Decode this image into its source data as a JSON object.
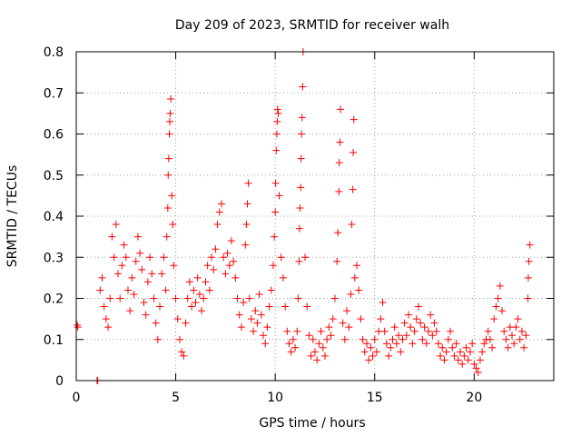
{
  "chart_data": {
    "type": "scatter",
    "title": "Day 209 of 2023, SRMTID for receiver walh",
    "xlabel": "GPS time / hours",
    "ylabel": "SRMTID / TECUs",
    "xlim": [
      0,
      24
    ],
    "ylim": [
      0,
      0.8
    ],
    "grid": true,
    "x_ticks": [
      0,
      5,
      10,
      15,
      20
    ],
    "x_tick_labels": [
      "0",
      "5",
      "10",
      "15",
      "20"
    ],
    "y_ticks": [
      0,
      0.1,
      0.2,
      0.3,
      0.4,
      0.5,
      0.6,
      0.7,
      0.8
    ],
    "y_tick_labels": [
      "0",
      "0.1",
      "0.2",
      "0.3",
      "0.4",
      "0.5",
      "0.6",
      "0.7",
      "0.8"
    ],
    "marker": "plus",
    "color": "#ff0000",
    "series": [
      {
        "name": "SRMTID",
        "points": [
          [
            0.05,
            0.135
          ],
          [
            0.08,
            0.13
          ],
          [
            1.05,
            0.0
          ],
          [
            1.08,
            0.0
          ],
          [
            1.2,
            0.22
          ],
          [
            1.3,
            0.25
          ],
          [
            1.4,
            0.18
          ],
          [
            1.5,
            0.15
          ],
          [
            1.6,
            0.13
          ],
          [
            1.7,
            0.2
          ],
          [
            1.8,
            0.35
          ],
          [
            1.9,
            0.3
          ],
          [
            2.0,
            0.38
          ],
          [
            2.1,
            0.26
          ],
          [
            2.2,
            0.2
          ],
          [
            2.3,
            0.28
          ],
          [
            2.4,
            0.33
          ],
          [
            2.5,
            0.3
          ],
          [
            2.6,
            0.22
          ],
          [
            2.7,
            0.17
          ],
          [
            2.8,
            0.25
          ],
          [
            2.9,
            0.21
          ],
          [
            3.0,
            0.29
          ],
          [
            3.1,
            0.35
          ],
          [
            3.2,
            0.31
          ],
          [
            3.3,
            0.27
          ],
          [
            3.4,
            0.19
          ],
          [
            3.5,
            0.16
          ],
          [
            3.6,
            0.24
          ],
          [
            3.7,
            0.3
          ],
          [
            3.8,
            0.26
          ],
          [
            3.9,
            0.2
          ],
          [
            4.0,
            0.14
          ],
          [
            4.1,
            0.1
          ],
          [
            4.2,
            0.18
          ],
          [
            4.3,
            0.26
          ],
          [
            4.4,
            0.3
          ],
          [
            4.5,
            0.22
          ],
          [
            4.55,
            0.35
          ],
          [
            4.6,
            0.42
          ],
          [
            4.62,
            0.5
          ],
          [
            4.65,
            0.54
          ],
          [
            4.68,
            0.6
          ],
          [
            4.7,
            0.63
          ],
          [
            4.72,
            0.65
          ],
          [
            4.75,
            0.685
          ],
          [
            4.8,
            0.45
          ],
          [
            4.85,
            0.38
          ],
          [
            4.9,
            0.28
          ],
          [
            5.0,
            0.2
          ],
          [
            5.1,
            0.15
          ],
          [
            5.2,
            0.1
          ],
          [
            5.3,
            0.07
          ],
          [
            5.4,
            0.06
          ],
          [
            5.5,
            0.14
          ],
          [
            5.6,
            0.2
          ],
          [
            5.7,
            0.24
          ],
          [
            5.8,
            0.18
          ],
          [
            5.9,
            0.22
          ],
          [
            6.0,
            0.19
          ],
          [
            6.1,
            0.25
          ],
          [
            6.2,
            0.21
          ],
          [
            6.3,
            0.17
          ],
          [
            6.4,
            0.2
          ],
          [
            6.5,
            0.24
          ],
          [
            6.6,
            0.28
          ],
          [
            6.7,
            0.22
          ],
          [
            6.8,
            0.3
          ],
          [
            6.9,
            0.27
          ],
          [
            7.0,
            0.32
          ],
          [
            7.1,
            0.38
          ],
          [
            7.2,
            0.41
          ],
          [
            7.3,
            0.43
          ],
          [
            7.4,
            0.3
          ],
          [
            7.5,
            0.26
          ],
          [
            7.6,
            0.31
          ],
          [
            7.7,
            0.28
          ],
          [
            7.8,
            0.34
          ],
          [
            7.9,
            0.29
          ],
          [
            8.0,
            0.25
          ],
          [
            8.1,
            0.2
          ],
          [
            8.2,
            0.16
          ],
          [
            8.3,
            0.13
          ],
          [
            8.4,
            0.19
          ],
          [
            8.5,
            0.33
          ],
          [
            8.55,
            0.38
          ],
          [
            8.6,
            0.43
          ],
          [
            8.65,
            0.48
          ],
          [
            8.7,
            0.2
          ],
          [
            8.8,
            0.15
          ],
          [
            8.9,
            0.12
          ],
          [
            9.0,
            0.17
          ],
          [
            9.1,
            0.14
          ],
          [
            9.2,
            0.21
          ],
          [
            9.3,
            0.16
          ],
          [
            9.4,
            0.11
          ],
          [
            9.5,
            0.09
          ],
          [
            9.6,
            0.13
          ],
          [
            9.7,
            0.18
          ],
          [
            9.8,
            0.22
          ],
          [
            9.9,
            0.28
          ],
          [
            9.95,
            0.35
          ],
          [
            10.0,
            0.41
          ],
          [
            10.02,
            0.48
          ],
          [
            10.05,
            0.56
          ],
          [
            10.08,
            0.6
          ],
          [
            10.1,
            0.63
          ],
          [
            10.12,
            0.66
          ],
          [
            10.15,
            0.65
          ],
          [
            10.2,
            0.45
          ],
          [
            10.3,
            0.3
          ],
          [
            10.4,
            0.25
          ],
          [
            10.5,
            0.18
          ],
          [
            10.6,
            0.12
          ],
          [
            10.7,
            0.09
          ],
          [
            10.8,
            0.07
          ],
          [
            10.9,
            0.1
          ],
          [
            11.0,
            0.08
          ],
          [
            11.1,
            0.12
          ],
          [
            11.15,
            0.2
          ],
          [
            11.2,
            0.29
          ],
          [
            11.22,
            0.37
          ],
          [
            11.25,
            0.42
          ],
          [
            11.28,
            0.47
          ],
          [
            11.3,
            0.54
          ],
          [
            11.32,
            0.6
          ],
          [
            11.35,
            0.64
          ],
          [
            11.38,
            0.715
          ],
          [
            11.4,
            0.8
          ],
          [
            11.5,
            0.3
          ],
          [
            11.6,
            0.18
          ],
          [
            11.7,
            0.11
          ],
          [
            11.8,
            0.06
          ],
          [
            11.9,
            0.1
          ],
          [
            12.0,
            0.07
          ],
          [
            12.1,
            0.05
          ],
          [
            12.2,
            0.09
          ],
          [
            12.3,
            0.12
          ],
          [
            12.4,
            0.08
          ],
          [
            12.5,
            0.06
          ],
          [
            12.6,
            0.1
          ],
          [
            12.7,
            0.13
          ],
          [
            12.8,
            0.11
          ],
          [
            12.9,
            0.15
          ],
          [
            13.0,
            0.2
          ],
          [
            13.1,
            0.29
          ],
          [
            13.15,
            0.36
          ],
          [
            13.2,
            0.46
          ],
          [
            13.22,
            0.53
          ],
          [
            13.25,
            0.58
          ],
          [
            13.28,
            0.66
          ],
          [
            13.4,
            0.14
          ],
          [
            13.5,
            0.1
          ],
          [
            13.6,
            0.17
          ],
          [
            13.7,
            0.13
          ],
          [
            13.8,
            0.21
          ],
          [
            13.85,
            0.38
          ],
          [
            13.9,
            0.465
          ],
          [
            13.92,
            0.555
          ],
          [
            13.95,
            0.635
          ],
          [
            14.0,
            0.25
          ],
          [
            14.1,
            0.28
          ],
          [
            14.2,
            0.22
          ],
          [
            14.3,
            0.15
          ],
          [
            14.4,
            0.1
          ],
          [
            14.5,
            0.07
          ],
          [
            14.6,
            0.09
          ],
          [
            14.7,
            0.05
          ],
          [
            14.8,
            0.08
          ],
          [
            14.9,
            0.06
          ],
          [
            15.0,
            0.1
          ],
          [
            15.1,
            0.07
          ],
          [
            15.2,
            0.12
          ],
          [
            15.3,
            0.15
          ],
          [
            15.4,
            0.19
          ],
          [
            15.5,
            0.12
          ],
          [
            15.6,
            0.09
          ],
          [
            15.7,
            0.06
          ],
          [
            15.8,
            0.08
          ],
          [
            15.9,
            0.1
          ],
          [
            16.0,
            0.13
          ],
          [
            16.1,
            0.09
          ],
          [
            16.2,
            0.11
          ],
          [
            16.3,
            0.07
          ],
          [
            16.4,
            0.1
          ],
          [
            16.5,
            0.14
          ],
          [
            16.6,
            0.11
          ],
          [
            16.7,
            0.16
          ],
          [
            16.8,
            0.13
          ],
          [
            16.9,
            0.09
          ],
          [
            17.0,
            0.12
          ],
          [
            17.1,
            0.15
          ],
          [
            17.2,
            0.18
          ],
          [
            17.3,
            0.14
          ],
          [
            17.4,
            0.1
          ],
          [
            17.5,
            0.13
          ],
          [
            17.6,
            0.09
          ],
          [
            17.7,
            0.12
          ],
          [
            17.8,
            0.16
          ],
          [
            17.9,
            0.11
          ],
          [
            18.0,
            0.14
          ],
          [
            18.1,
            0.12
          ],
          [
            18.2,
            0.09
          ],
          [
            18.3,
            0.06
          ],
          [
            18.4,
            0.08
          ],
          [
            18.5,
            0.05
          ],
          [
            18.6,
            0.07
          ],
          [
            18.7,
            0.1
          ],
          [
            18.8,
            0.12
          ],
          [
            18.9,
            0.08
          ],
          [
            19.0,
            0.06
          ],
          [
            19.1,
            0.09
          ],
          [
            19.2,
            0.05
          ],
          [
            19.3,
            0.07
          ],
          [
            19.4,
            0.04
          ],
          [
            19.5,
            0.06
          ],
          [
            19.6,
            0.08
          ],
          [
            19.7,
            0.05
          ],
          [
            19.8,
            0.07
          ],
          [
            19.9,
            0.09
          ],
          [
            20.0,
            0.04
          ],
          [
            20.1,
            0.03
          ],
          [
            20.2,
            0.02
          ],
          [
            20.3,
            0.05
          ],
          [
            20.4,
            0.07
          ],
          [
            20.5,
            0.09
          ],
          [
            20.6,
            0.1
          ],
          [
            20.7,
            0.12
          ],
          [
            20.8,
            0.1
          ],
          [
            20.9,
            0.08
          ],
          [
            21.0,
            0.15
          ],
          [
            21.1,
            0.18
          ],
          [
            21.2,
            0.2
          ],
          [
            21.3,
            0.23
          ],
          [
            21.4,
            0.17
          ],
          [
            21.5,
            0.12
          ],
          [
            21.6,
            0.1
          ],
          [
            21.7,
            0.08
          ],
          [
            21.8,
            0.13
          ],
          [
            21.9,
            0.11
          ],
          [
            22.0,
            0.09
          ],
          [
            22.1,
            0.13
          ],
          [
            22.2,
            0.15
          ],
          [
            22.3,
            0.1
          ],
          [
            22.4,
            0.12
          ],
          [
            22.5,
            0.08
          ],
          [
            22.6,
            0.11
          ],
          [
            22.7,
            0.2
          ],
          [
            22.72,
            0.25
          ],
          [
            22.75,
            0.29
          ],
          [
            22.8,
            0.33
          ]
        ]
      }
    ]
  }
}
